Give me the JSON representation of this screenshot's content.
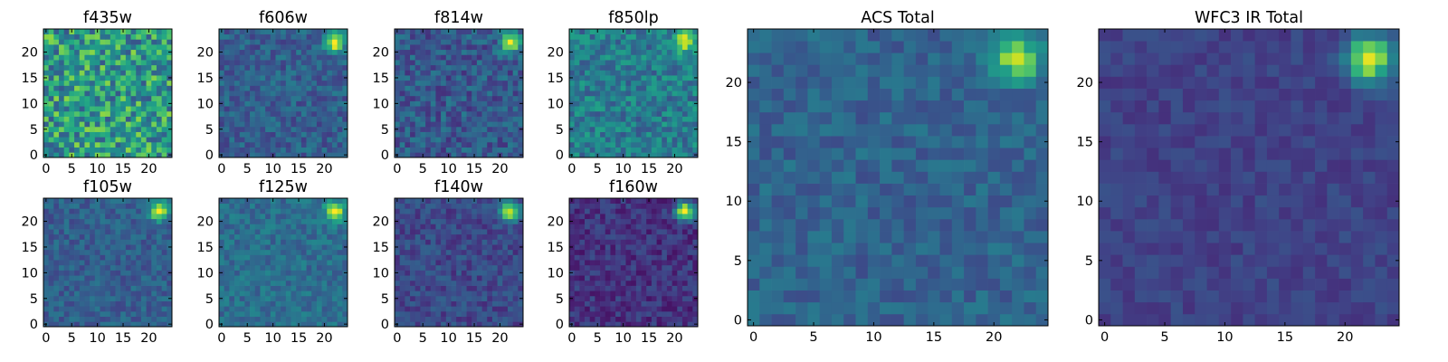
{
  "chart_data": {
    "type": "heatmap",
    "colormap": "viridis",
    "panels": [
      {
        "title": "f435w",
        "grid": [
          25,
          25
        ],
        "xlim": [
          0,
          24
        ],
        "ylim": [
          0,
          24
        ],
        "xticks": [
          "0",
          "5",
          "10",
          "15",
          "20"
        ],
        "yticks": [
          "0",
          "5",
          "10",
          "15",
          "20"
        ],
        "noise": 0.28,
        "bright_spot": [
          22,
          22
        ],
        "spot_strength": 0.0,
        "base_level": 0.55
      },
      {
        "title": "f606w",
        "grid": [
          25,
          25
        ],
        "xlim": [
          0,
          24
        ],
        "ylim": [
          0,
          24
        ],
        "xticks": [
          "0",
          "5",
          "10",
          "15",
          "20"
        ],
        "yticks": [
          "0",
          "5",
          "10",
          "15",
          "20"
        ],
        "noise": 0.12,
        "bright_spot": [
          22,
          22
        ],
        "spot_strength": 0.75,
        "base_level": 0.3
      },
      {
        "title": "f814w",
        "grid": [
          25,
          25
        ],
        "xlim": [
          0,
          24
        ],
        "ylim": [
          0,
          24
        ],
        "xticks": [
          "0",
          "5",
          "10",
          "15",
          "20"
        ],
        "yticks": [
          "0",
          "5",
          "10",
          "15",
          "20"
        ],
        "noise": 0.14,
        "bright_spot": [
          22,
          22
        ],
        "spot_strength": 0.75,
        "base_level": 0.28
      },
      {
        "title": "f850lp",
        "grid": [
          25,
          25
        ],
        "xlim": [
          0,
          24
        ],
        "ylim": [
          0,
          24
        ],
        "xticks": [
          "0",
          "5",
          "10",
          "15",
          "20"
        ],
        "yticks": [
          "0",
          "5",
          "10",
          "15",
          "20"
        ],
        "noise": 0.16,
        "bright_spot": [
          22,
          22
        ],
        "spot_strength": 0.6,
        "base_level": 0.42
      },
      {
        "title": "f105w",
        "grid": [
          25,
          25
        ],
        "xlim": [
          0,
          24
        ],
        "ylim": [
          0,
          24
        ],
        "xticks": [
          "0",
          "5",
          "10",
          "15",
          "20"
        ],
        "yticks": [
          "0",
          "5",
          "10",
          "15",
          "20"
        ],
        "noise": 0.1,
        "bright_spot": [
          22,
          22
        ],
        "spot_strength": 0.7,
        "base_level": 0.3
      },
      {
        "title": "f125w",
        "grid": [
          25,
          25
        ],
        "xlim": [
          0,
          24
        ],
        "ylim": [
          0,
          24
        ],
        "xticks": [
          "0",
          "5",
          "10",
          "15",
          "20"
        ],
        "yticks": [
          "0",
          "5",
          "10",
          "15",
          "20"
        ],
        "noise": 0.1,
        "bright_spot": [
          22,
          22
        ],
        "spot_strength": 0.65,
        "base_level": 0.36
      },
      {
        "title": "f140w",
        "grid": [
          25,
          25
        ],
        "xlim": [
          0,
          24
        ],
        "ylim": [
          0,
          24
        ],
        "xticks": [
          "0",
          "5",
          "10",
          "15",
          "20"
        ],
        "yticks": [
          "0",
          "5",
          "10",
          "15",
          "20"
        ],
        "noise": 0.1,
        "bright_spot": [
          22,
          22
        ],
        "spot_strength": 0.75,
        "base_level": 0.22
      },
      {
        "title": "f160w",
        "grid": [
          25,
          25
        ],
        "xlim": [
          0,
          24
        ],
        "ylim": [
          0,
          24
        ],
        "xticks": [
          "0",
          "5",
          "10",
          "15",
          "20"
        ],
        "yticks": [
          "0",
          "5",
          "10",
          "15",
          "20"
        ],
        "noise": 0.1,
        "bright_spot": [
          22,
          22
        ],
        "spot_strength": 0.85,
        "base_level": 0.15
      },
      {
        "title": "ACS Total",
        "grid": [
          25,
          25
        ],
        "xlim": [
          0,
          24
        ],
        "ylim": [
          0,
          24
        ],
        "xticks": [
          "0",
          "5",
          "10",
          "15",
          "20"
        ],
        "yticks": [
          "0",
          "5",
          "10",
          "15",
          "20"
        ],
        "noise": 0.09,
        "bright_spot": [
          22,
          22
        ],
        "spot_strength": 0.6,
        "base_level": 0.32
      },
      {
        "title": "WFC3 IR Total",
        "grid": [
          25,
          25
        ],
        "xlim": [
          0,
          24
        ],
        "ylim": [
          0,
          24
        ],
        "xticks": [
          "0",
          "5",
          "10",
          "15",
          "20"
        ],
        "yticks": [
          "0",
          "5",
          "10",
          "15",
          "20"
        ],
        "noise": 0.06,
        "bright_spot": [
          22,
          22
        ],
        "spot_strength": 0.8,
        "base_level": 0.2
      }
    ]
  }
}
